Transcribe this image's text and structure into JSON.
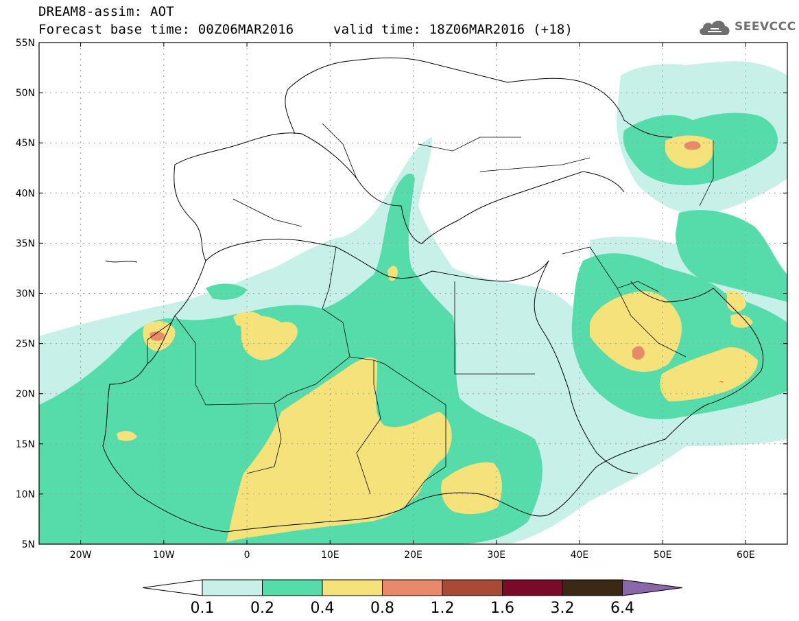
{
  "header": {
    "product": "DREAM8-assim: AOT",
    "base_time": "Forecast base time: 00Z06MAR2016",
    "valid_time": "valid time: 18Z06MAR2016 (+18)"
  },
  "logo": {
    "text": "SEEVCCC",
    "icon": "cloud-icon"
  },
  "map": {
    "lat_ticks": [
      "55N",
      "50N",
      "45N",
      "40N",
      "35N",
      "30N",
      "25N",
      "20N",
      "15N",
      "10N",
      "5N"
    ],
    "lon_ticks": [
      "20W",
      "10W",
      "0",
      "10E",
      "20E",
      "30E",
      "40E",
      "50E",
      "60E"
    ],
    "lon_range": [
      -25,
      65
    ],
    "lat_range": [
      5,
      55
    ]
  },
  "colorbar": {
    "labels": [
      "0.1",
      "0.2",
      "0.4",
      "0.8",
      "1.2",
      "1.6",
      "3.2",
      "6.4"
    ],
    "colors": [
      "#ffffff",
      "#c7f0e9",
      "#55dcaa",
      "#f5e27a",
      "#e8896a",
      "#a84a35",
      "#7a0a28",
      "#3b2916",
      "#8a66aa"
    ]
  }
}
